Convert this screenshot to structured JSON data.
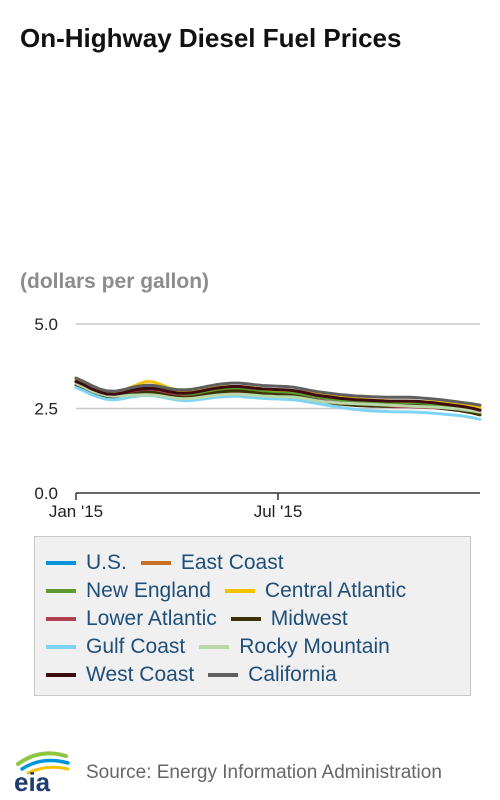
{
  "title": "On-Highway Diesel Fuel Prices",
  "unit_label": "(dollars per gallon)",
  "source": "Source: Energy Information Administration",
  "logo_text": "eia",
  "chart_data": {
    "type": "line",
    "title": "On-Highway Diesel Fuel Prices",
    "ylabel": "(dollars per gallon)",
    "xlabel": "",
    "ylim": [
      0,
      5
    ],
    "yticks": [
      {
        "value": 0,
        "label": "0.0"
      },
      {
        "value": 2.5,
        "label": "2.5"
      },
      {
        "value": 5,
        "label": "5.0"
      }
    ],
    "xticks": [
      {
        "week": 0,
        "label": "Jan '15"
      },
      {
        "week": 26,
        "label": "Jul '15"
      }
    ],
    "x": [
      0,
      1,
      2,
      3,
      4,
      5,
      6,
      7,
      8,
      9,
      10,
      11,
      12,
      13,
      14,
      15,
      16,
      17,
      18,
      19,
      20,
      21,
      22,
      23,
      24,
      25,
      26,
      27,
      28,
      29,
      30,
      31,
      32,
      33,
      34,
      35,
      36,
      37,
      38,
      39,
      40,
      41,
      42,
      43,
      44,
      45,
      46,
      47,
      48,
      49,
      50,
      51,
      52
    ],
    "grid": "horizontal",
    "legend_position": "bottom",
    "series": [
      {
        "name": "U.S.",
        "color": "#0095d9",
        "values": [
          3.22,
          3.12,
          3.0,
          2.92,
          2.86,
          2.85,
          2.88,
          2.93,
          2.95,
          2.97,
          2.96,
          2.92,
          2.87,
          2.83,
          2.81,
          2.82,
          2.85,
          2.88,
          2.91,
          2.93,
          2.94,
          2.94,
          2.92,
          2.9,
          2.88,
          2.87,
          2.86,
          2.86,
          2.85,
          2.82,
          2.78,
          2.75,
          2.72,
          2.69,
          2.66,
          2.64,
          2.62,
          2.6,
          2.58,
          2.57,
          2.56,
          2.56,
          2.56,
          2.56,
          2.55,
          2.54,
          2.53,
          2.52,
          2.5,
          2.48,
          2.45,
          2.42,
          2.37
        ]
      },
      {
        "name": "East Coast",
        "color": "#c66f25",
        "values": [
          3.33,
          3.23,
          3.11,
          3.02,
          2.96,
          2.94,
          2.98,
          3.05,
          3.12,
          3.18,
          3.16,
          3.1,
          3.02,
          2.96,
          2.94,
          2.95,
          2.99,
          3.03,
          3.07,
          3.09,
          3.1,
          3.1,
          3.09,
          3.06,
          3.03,
          3.01,
          3.0,
          2.99,
          2.98,
          2.95,
          2.91,
          2.87,
          2.84,
          2.81,
          2.78,
          2.76,
          2.74,
          2.72,
          2.7,
          2.69,
          2.68,
          2.67,
          2.67,
          2.67,
          2.66,
          2.65,
          2.64,
          2.62,
          2.6,
          2.58,
          2.55,
          2.52,
          2.47
        ]
      },
      {
        "name": "New England",
        "color": "#5d9b32",
        "values": [
          3.3,
          3.2,
          3.08,
          2.99,
          2.93,
          2.91,
          2.95,
          3.02,
          3.09,
          3.15,
          3.13,
          3.07,
          3.0,
          2.94,
          2.92,
          2.93,
          2.96,
          3.0,
          3.04,
          3.06,
          3.07,
          3.07,
          3.06,
          3.03,
          3.0,
          2.98,
          2.97,
          2.96,
          2.95,
          2.92,
          2.88,
          2.84,
          2.81,
          2.78,
          2.75,
          2.73,
          2.71,
          2.69,
          2.67,
          2.66,
          2.65,
          2.64,
          2.64,
          2.64,
          2.63,
          2.62,
          2.61,
          2.59,
          2.57,
          2.55,
          2.52,
          2.49,
          2.44
        ]
      },
      {
        "name": "Central Atlantic",
        "color": "#f5c200",
        "values": [
          3.36,
          3.26,
          3.14,
          3.05,
          2.99,
          2.97,
          3.02,
          3.12,
          3.22,
          3.3,
          3.28,
          3.2,
          3.11,
          3.04,
          3.01,
          3.02,
          3.05,
          3.09,
          3.12,
          3.14,
          3.15,
          3.15,
          3.14,
          3.11,
          3.08,
          3.06,
          3.05,
          3.04,
          3.03,
          3.0,
          2.96,
          2.92,
          2.89,
          2.86,
          2.83,
          2.81,
          2.79,
          2.77,
          2.75,
          2.74,
          2.73,
          2.72,
          2.72,
          2.72,
          2.71,
          2.7,
          2.69,
          2.67,
          2.65,
          2.63,
          2.6,
          2.57,
          2.52
        ]
      },
      {
        "name": "Lower Atlantic",
        "color": "#b03e4f",
        "values": [
          3.26,
          3.16,
          3.04,
          2.95,
          2.89,
          2.87,
          2.9,
          2.96,
          3.01,
          3.04,
          3.02,
          2.97,
          2.91,
          2.86,
          2.84,
          2.85,
          2.88,
          2.92,
          2.96,
          2.98,
          2.99,
          2.99,
          2.97,
          2.94,
          2.91,
          2.89,
          2.88,
          2.87,
          2.86,
          2.83,
          2.79,
          2.75,
          2.72,
          2.69,
          2.66,
          2.64,
          2.62,
          2.6,
          2.58,
          2.57,
          2.56,
          2.55,
          2.55,
          2.55,
          2.54,
          2.53,
          2.52,
          2.5,
          2.48,
          2.46,
          2.43,
          2.4,
          2.35
        ]
      },
      {
        "name": "Midwest",
        "color": "#3a3200",
        "values": [
          3.2,
          3.1,
          2.98,
          2.9,
          2.84,
          2.83,
          2.86,
          2.92,
          2.96,
          2.99,
          2.97,
          2.93,
          2.88,
          2.84,
          2.82,
          2.84,
          2.88,
          2.93,
          2.97,
          3.0,
          3.02,
          3.02,
          3.0,
          2.97,
          2.94,
          2.92,
          2.91,
          2.9,
          2.88,
          2.84,
          2.79,
          2.74,
          2.7,
          2.66,
          2.63,
          2.61,
          2.59,
          2.58,
          2.57,
          2.57,
          2.57,
          2.58,
          2.59,
          2.59,
          2.58,
          2.56,
          2.54,
          2.51,
          2.48,
          2.45,
          2.41,
          2.37,
          2.31
        ]
      },
      {
        "name": "Gulf Coast",
        "color": "#7fd4f5",
        "values": [
          3.12,
          3.02,
          2.91,
          2.83,
          2.77,
          2.76,
          2.79,
          2.84,
          2.87,
          2.89,
          2.88,
          2.84,
          2.79,
          2.75,
          2.73,
          2.74,
          2.77,
          2.8,
          2.83,
          2.85,
          2.86,
          2.86,
          2.84,
          2.82,
          2.8,
          2.79,
          2.78,
          2.77,
          2.76,
          2.73,
          2.69,
          2.65,
          2.61,
          2.57,
          2.53,
          2.5,
          2.47,
          2.45,
          2.43,
          2.42,
          2.41,
          2.4,
          2.4,
          2.4,
          2.39,
          2.38,
          2.36,
          2.34,
          2.32,
          2.3,
          2.27,
          2.23,
          2.18
        ]
      },
      {
        "name": "Rocky Mountain",
        "color": "#b9d7a8",
        "values": [
          3.24,
          3.14,
          3.02,
          2.94,
          2.88,
          2.86,
          2.87,
          2.89,
          2.9,
          2.91,
          2.9,
          2.87,
          2.83,
          2.8,
          2.79,
          2.8,
          2.83,
          2.86,
          2.89,
          2.91,
          2.92,
          2.92,
          2.91,
          2.89,
          2.87,
          2.86,
          2.85,
          2.85,
          2.84,
          2.81,
          2.77,
          2.73,
          2.7,
          2.68,
          2.66,
          2.65,
          2.64,
          2.63,
          2.62,
          2.61,
          2.6,
          2.59,
          2.58,
          2.57,
          2.56,
          2.55,
          2.54,
          2.53,
          2.51,
          2.49,
          2.46,
          2.43,
          2.39
        ]
      },
      {
        "name": "West Coast",
        "color": "#3d0a12",
        "values": [
          3.3,
          3.2,
          3.08,
          2.99,
          2.93,
          2.92,
          2.96,
          3.02,
          3.07,
          3.1,
          3.09,
          3.05,
          3.0,
          2.96,
          2.95,
          2.97,
          3.01,
          3.06,
          3.1,
          3.13,
          3.15,
          3.15,
          3.13,
          3.1,
          3.08,
          3.07,
          3.06,
          3.05,
          3.03,
          2.99,
          2.94,
          2.89,
          2.86,
          2.83,
          2.8,
          2.78,
          2.76,
          2.75,
          2.74,
          2.73,
          2.72,
          2.72,
          2.72,
          2.72,
          2.71,
          2.69,
          2.67,
          2.64,
          2.61,
          2.58,
          2.55,
          2.51,
          2.45
        ]
      },
      {
        "name": "California",
        "color": "#5f5f5f",
        "values": [
          3.4,
          3.3,
          3.18,
          3.08,
          3.02,
          3.01,
          3.05,
          3.11,
          3.16,
          3.19,
          3.18,
          3.14,
          3.09,
          3.06,
          3.05,
          3.07,
          3.11,
          3.16,
          3.2,
          3.23,
          3.25,
          3.25,
          3.23,
          3.2,
          3.18,
          3.17,
          3.16,
          3.15,
          3.13,
          3.09,
          3.04,
          3.0,
          2.97,
          2.94,
          2.91,
          2.89,
          2.87,
          2.86,
          2.85,
          2.84,
          2.83,
          2.83,
          2.83,
          2.83,
          2.82,
          2.8,
          2.78,
          2.76,
          2.73,
          2.7,
          2.67,
          2.64,
          2.6
        ]
      }
    ]
  }
}
